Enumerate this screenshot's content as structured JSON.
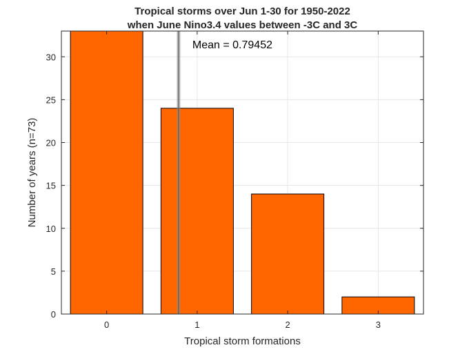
{
  "chart_data": {
    "type": "bar",
    "title": "Tropical storms over Jun 1-30 for 1950-2022",
    "subtitle": "when June Nino3.4 values between -3C and 3C",
    "xlabel": "Tropical storm formations",
    "ylabel": "Number of years (n=73)",
    "categories": [
      "0",
      "1",
      "2",
      "3"
    ],
    "x": [
      0,
      1,
      2,
      3
    ],
    "values": [
      33,
      24,
      14,
      2
    ],
    "xlim": [
      -0.5,
      3.5
    ],
    "ylim": [
      0,
      33
    ],
    "xticks": [
      "0",
      "1",
      "2",
      "3"
    ],
    "yticks": [
      "0",
      "5",
      "10",
      "15",
      "20",
      "25",
      "30"
    ],
    "grid": true,
    "bar_width": 0.8,
    "mean_line": {
      "value": 0.79452,
      "label": "Mean = 0.79452"
    },
    "colors": {
      "bar": "#ff6600",
      "bar_edge": "#000000",
      "mean_line": "#8c8c8c",
      "grid": "#e6e6e6"
    }
  }
}
